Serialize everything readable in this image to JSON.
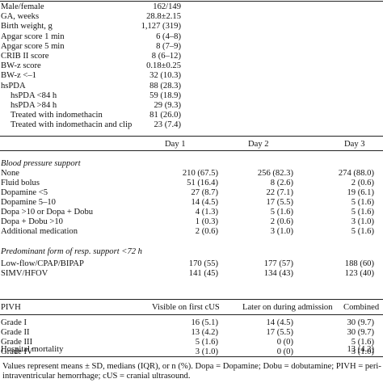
{
  "demographics": [
    {
      "label": "Male/female",
      "value": "162/149",
      "indent": false
    },
    {
      "label": "GA, weeks",
      "value": "28.8±2.15",
      "indent": false
    },
    {
      "label": "Birth weight, g",
      "value": "1,127 (319)",
      "indent": false
    },
    {
      "label": "Apgar score 1 min",
      "value": "6 (4–8)",
      "indent": false
    },
    {
      "label": "Apgar score 5 min",
      "value": "8 (7–9)",
      "indent": false
    },
    {
      "label": "CRIB II score",
      "value": "8 (6–12)",
      "indent": false
    },
    {
      "label": "BW-z score",
      "value": "0.18±0.25",
      "indent": false
    },
    {
      "label": "BW-z <–1",
      "value": "32 (10.3)",
      "indent": false
    },
    {
      "label": "hsPDA",
      "value": "88 (28.3)",
      "indent": false
    },
    {
      "label": "hsPDA <84 h",
      "value": "59 (18.9)",
      "indent": true
    },
    {
      "label": "hsPDA >84 h",
      "value": "29 (9.3)",
      "indent": true
    },
    {
      "label": "Treated with indomethacin",
      "value": "81 (26.0)",
      "indent": true
    },
    {
      "label": "Treated with indomethacin and clip",
      "value": "23 (7.4)",
      "indent": true
    }
  ],
  "days_header": [
    "Day 1",
    "Day 2",
    "Day 3"
  ],
  "bp_section": "Blood pressure support",
  "bp_rows": [
    {
      "label": "None",
      "values": [
        "210 (67.5)",
        "256 (82.3)",
        "274 (88.0)"
      ]
    },
    {
      "label": "Fluid bolus",
      "values": [
        "51 (16.4)",
        "8 (2.6)",
        "2 (0.6)"
      ]
    },
    {
      "label": "Dopamine <5",
      "values": [
        "27 (8.7)",
        "22 (7.1)",
        "19 (6.1)"
      ]
    },
    {
      "label": "Dopamine 5–10",
      "values": [
        "14 (4.5)",
        "17 (5.5)",
        "5 (1.6)"
      ]
    },
    {
      "label": "Dopa >10 or Dopa + Dobu",
      "values": [
        "4 (1.3)",
        "5 (1.6)",
        "5 (1.6)"
      ]
    },
    {
      "label": "Dopa + Dobu >10",
      "values": [
        "1 (0.3)",
        "2 (0.6)",
        "3 (1.0)"
      ]
    },
    {
      "label": "Additional medication",
      "values": [
        "2 (0.6)",
        "3 (1.0)",
        "5 (1.6)"
      ]
    }
  ],
  "resp_section": "Predominant form of resp. support <72 h",
  "resp_rows": [
    {
      "label": "Low-flow/CPAP/BIPAP",
      "values": [
        "170 (55)",
        "177 (57)",
        "188 (60)"
      ]
    },
    {
      "label": "SIMV/HFOV",
      "values": [
        "141 (45)",
        "134 (43)",
        "123 (40)"
      ]
    }
  ],
  "pivh_header": {
    "label": "PIVH",
    "cols": [
      "Visible on first cUS",
      "Later on during admission",
      "Combined"
    ]
  },
  "pivh_rows": [
    {
      "label": "Grade I",
      "values": [
        "16 (5.1)",
        "14 (4.5)",
        "30 (9.7)"
      ]
    },
    {
      "label": "Grade II",
      "values": [
        "13 (4.2)",
        "17 (5.5)",
        "30 (9.7)"
      ]
    },
    {
      "label": "Grade III",
      "values": [
        "5 (1.6)",
        "0 (0)",
        "5 (1.6)"
      ]
    },
    {
      "label": "Grade IV",
      "values": [
        "3 (1.0)",
        "0 (0)",
        "3 (1.0)"
      ]
    }
  ],
  "mortality": {
    "label": "Hospital mortality",
    "value": "13 (4.2)"
  },
  "footnote": "Values represent means ± SD, medians (IQR), or n (%). Dopa = Dopamine; Dobu = dobutamine; PIVH = peri-intraventricular hemorrhage; cUS = cranial ultrasound."
}
